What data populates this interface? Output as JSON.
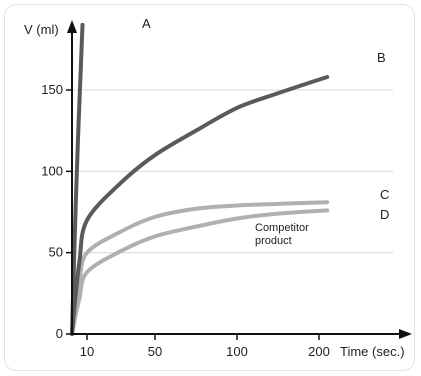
{
  "chart_data": {
    "type": "line",
    "title": "",
    "xlabel": "Time (sec.)",
    "ylabel": "V (ml)",
    "x_ticks": [
      {
        "label": "10",
        "position": 1
      },
      {
        "label": "50",
        "position": 2
      },
      {
        "label": "100",
        "position": 3
      },
      {
        "label": "200",
        "position": 4
      }
    ],
    "y_ticks": [
      "0",
      "50",
      "100",
      "150"
    ],
    "ylim": [
      0,
      190
    ],
    "grid": true,
    "series": [
      {
        "name": "A",
        "color": "#5a5a5a",
        "x_positions": [
          0,
          0.12,
          0.25,
          0.4,
          0.52,
          0.7
        ],
        "values": [
          0,
          40,
          80,
          120,
          148,
          190
        ]
      },
      {
        "name": "B",
        "color": "#5a5a5a",
        "x_positions": [
          0,
          0.2,
          0.5,
          1.0,
          1.5,
          2.0,
          2.5,
          3.0,
          3.5,
          4.1
        ],
        "values": [
          0,
          20,
          45,
          70,
          93,
          110,
          125,
          139,
          148,
          158
        ]
      },
      {
        "name": "C",
        "color": "#b0b0b0",
        "x_positions": [
          0,
          0.25,
          0.5,
          1.0,
          1.5,
          2.0,
          2.5,
          3.0,
          3.5,
          4.1
        ],
        "values": [
          0,
          20,
          33,
          50,
          63,
          72,
          77,
          79,
          80,
          81
        ]
      },
      {
        "name": "D",
        "color": "#b0b0b0",
        "x_positions": [
          0,
          0.25,
          0.5,
          1.0,
          1.5,
          2.0,
          2.5,
          3.0,
          3.5,
          4.1
        ],
        "values": [
          0,
          12,
          22,
          38,
          51,
          60,
          66,
          71,
          74,
          76
        ]
      }
    ],
    "annotation": {
      "lines": [
        "Competitor",
        "product"
      ],
      "series": "D"
    }
  }
}
